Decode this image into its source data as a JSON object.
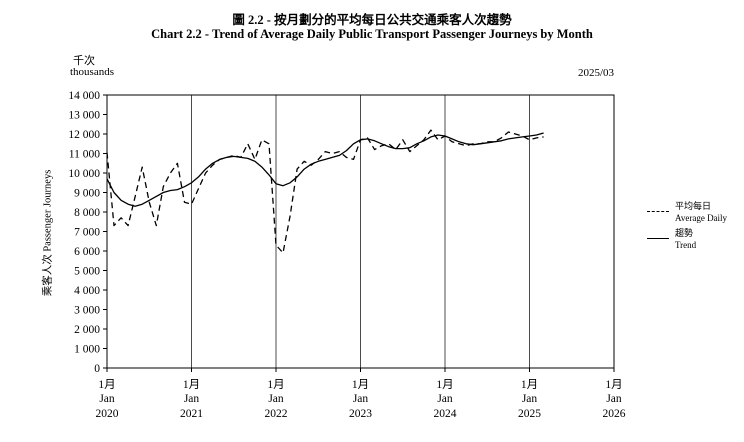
{
  "header": {
    "title_zh": "圖 2.2 -  按月劃分的平均每日公共交通乘客人次趨勢",
    "title_en": "Chart 2.2 -  Trend of Average Daily Public Transport Passenger Journeys by Month"
  },
  "units": {
    "zh": "千次",
    "en": "thousands"
  },
  "as_of": "2025/03",
  "chart_data": {
    "type": "line",
    "title": "Chart 2.2 -  Trend of Average Daily Public Transport Passenger Journeys by Month",
    "ylabel": "乘客人次  Passenger Journeys",
    "ylim": [
      0,
      14000
    ],
    "yticks": [
      0,
      1000,
      2000,
      3000,
      4000,
      5000,
      6000,
      7000,
      8000,
      9000,
      10000,
      11000,
      12000,
      13000,
      14000
    ],
    "ytick_labels": [
      "0",
      "1 000",
      "2 000",
      "3 000",
      "4 000",
      "5 000",
      "6 000",
      "7 000",
      "8 000",
      "9 000",
      "10 000",
      "11 000",
      "12 000",
      "13 000",
      "14 000"
    ],
    "xlim": [
      "2020-01",
      "2026-01"
    ],
    "xticks": [
      {
        "date": "2020-01",
        "zh": "1月",
        "mon": "Jan",
        "year": "2020"
      },
      {
        "date": "2021-01",
        "zh": "1月",
        "mon": "Jan",
        "year": "2021"
      },
      {
        "date": "2022-01",
        "zh": "1月",
        "mon": "Jan",
        "year": "2022"
      },
      {
        "date": "2023-01",
        "zh": "1月",
        "mon": "Jan",
        "year": "2023"
      },
      {
        "date": "2024-01",
        "zh": "1月",
        "mon": "Jan",
        "year": "2024"
      },
      {
        "date": "2025-01",
        "zh": "1月",
        "mon": "Jan",
        "year": "2025"
      },
      {
        "date": "2026-01",
        "zh": "1月",
        "mon": "Jan",
        "year": "2026"
      }
    ],
    "vertical_grid": true,
    "legend_position": "right",
    "x": [
      "2020-01",
      "2020-02",
      "2020-03",
      "2020-04",
      "2020-05",
      "2020-06",
      "2020-07",
      "2020-08",
      "2020-09",
      "2020-10",
      "2020-11",
      "2020-12",
      "2021-01",
      "2021-02",
      "2021-03",
      "2021-04",
      "2021-05",
      "2021-06",
      "2021-07",
      "2021-08",
      "2021-09",
      "2021-10",
      "2021-11",
      "2021-12",
      "2022-01",
      "2022-02",
      "2022-03",
      "2022-04",
      "2022-05",
      "2022-06",
      "2022-07",
      "2022-08",
      "2022-09",
      "2022-10",
      "2022-11",
      "2022-12",
      "2023-01",
      "2023-02",
      "2023-03",
      "2023-04",
      "2023-05",
      "2023-06",
      "2023-07",
      "2023-08",
      "2023-09",
      "2023-10",
      "2023-11",
      "2023-12",
      "2024-01",
      "2024-02",
      "2024-03",
      "2024-04",
      "2024-05",
      "2024-06",
      "2024-07",
      "2024-08",
      "2024-09",
      "2024-10",
      "2024-11",
      "2024-12",
      "2025-01",
      "2025-02",
      "2025-03"
    ],
    "series": [
      {
        "name": "平均每日 Average Daily",
        "name_zh": "平均每日",
        "name_en": "Average Daily",
        "style": "dashed",
        "values": [
          11050,
          7300,
          7700,
          7300,
          8800,
          10300,
          8500,
          7300,
          9300,
          10000,
          10500,
          8500,
          8400,
          9200,
          10000,
          10400,
          10700,
          10800,
          10900,
          10800,
          11500,
          10700,
          11700,
          11500,
          6300,
          5900,
          7800,
          10200,
          10600,
          10400,
          10700,
          11100,
          11000,
          11100,
          10800,
          10700,
          11700,
          11800,
          11200,
          11400,
          11500,
          11200,
          11700,
          11100,
          11400,
          11700,
          12200,
          11700,
          11900,
          11600,
          11500,
          11400,
          11500,
          11500,
          11600,
          11600,
          11800,
          12100,
          12000,
          11900,
          11700,
          11800,
          11850
        ]
      },
      {
        "name": "趨勢 Trend",
        "name_zh": "趨勢",
        "name_en": "Trend",
        "style": "solid",
        "values": [
          9700,
          9000,
          8600,
          8400,
          8300,
          8400,
          8600,
          8800,
          9000,
          9100,
          9150,
          9300,
          9500,
          9800,
          10200,
          10500,
          10700,
          10800,
          10850,
          10800,
          10750,
          10600,
          10300,
          9900,
          9450,
          9350,
          9500,
          9800,
          10200,
          10450,
          10600,
          10700,
          10800,
          10900,
          11150,
          11500,
          11700,
          11750,
          11650,
          11500,
          11350,
          11250,
          11250,
          11300,
          11500,
          11650,
          11850,
          11950,
          11900,
          11750,
          11600,
          11500,
          11450,
          11500,
          11550,
          11600,
          11650,
          11750,
          11800,
          11850,
          11900,
          11950,
          12050
        ]
      }
    ]
  }
}
